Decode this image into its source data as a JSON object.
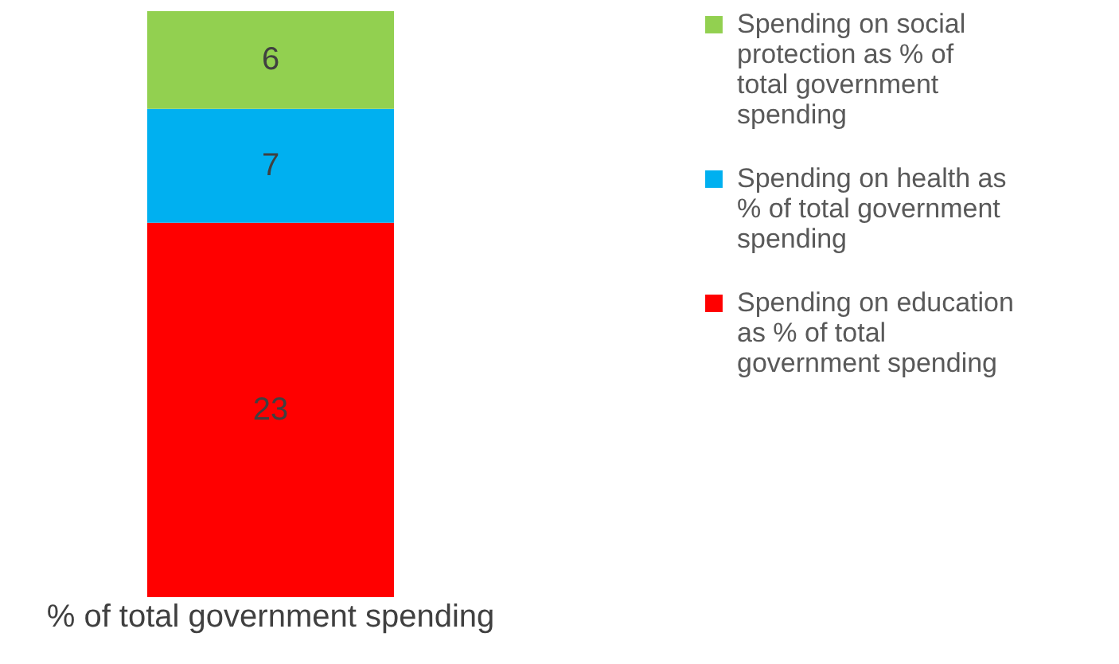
{
  "chart_data": {
    "type": "bar",
    "stacked": true,
    "categories": [
      "% of total government spending"
    ],
    "data_labels": true,
    "legend": "right",
    "grid": false,
    "tick_labels": "x",
    "series": [
      {
        "name": "Spending on education as % of total government spending",
        "color": "#ff0000",
        "values": [
          23
        ]
      },
      {
        "name": "Spending on health as % of total government spending",
        "color": "#00b0f0",
        "values": [
          7
        ]
      },
      {
        "name": "Spending on  social protection as % of total government spending",
        "color": "#92d050",
        "values": [
          6
        ]
      }
    ]
  }
}
